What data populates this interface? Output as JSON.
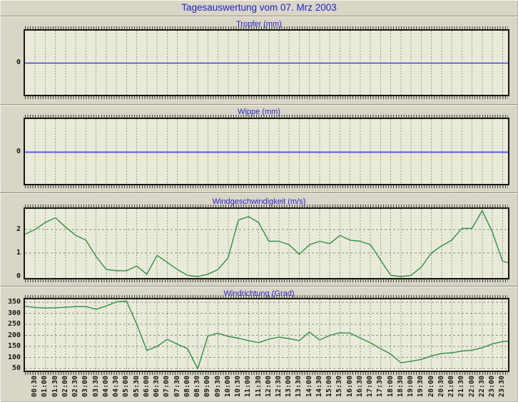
{
  "window": {
    "title": "Tagesauswertung vom 07. Mrz 2003"
  },
  "colors": {
    "page_bg": "#d9d5c7",
    "plot_bg": "#eaeada",
    "title_blue": "#2222cc",
    "grid_gray": "#9d9d8f",
    "hgrid_gray": "#8f8f7e",
    "tropfer_line": "#2929c8",
    "wippe_line": "#5b5bdf",
    "wind_green": "#2c9140"
  },
  "xaxis": {
    "start": "00:00",
    "end": "24:00",
    "step_minutes": 30,
    "tick_labels": [
      "00:30",
      "01:00",
      "01:30",
      "02:00",
      "02:30",
      "03:00",
      "03:30",
      "04:00",
      "04:30",
      "05:00",
      "05:30",
      "06:00",
      "06:30",
      "07:00",
      "07:30",
      "08:00",
      "08:30",
      "09:00",
      "09:30",
      "10:00",
      "10:30",
      "11:00",
      "11:30",
      "12:00",
      "12:30",
      "13:00",
      "13:30",
      "14:00",
      "14:30",
      "15:00",
      "15:30",
      "16:00",
      "16:30",
      "17:00",
      "17:30",
      "18:00",
      "18:30",
      "19:00",
      "19:30",
      "20:00",
      "20:30",
      "21:00",
      "21:30",
      "22:00",
      "22:30",
      "23:00",
      "23:30"
    ]
  },
  "chart_data": [
    {
      "type": "line",
      "title": "Tropfer (mm)",
      "y_ticks": [
        {
          "value": 0,
          "label": "0"
        }
      ],
      "constant_value": 0,
      "note": "flat line at 0 for entire day",
      "grid": "vertical dashed every 30 min"
    },
    {
      "type": "line",
      "title": "Wippe (mm)",
      "y_ticks": [
        {
          "value": 0,
          "label": "0"
        }
      ],
      "constant_value": 0,
      "note": "flat line at 0 for entire day",
      "grid": "vertical dashed every 30 min"
    },
    {
      "type": "line",
      "title": "Windgeschwindigkeit (m/s)",
      "ylim": [
        0,
        2.9
      ],
      "y_ticks": [
        {
          "value": 0,
          "label": "0"
        },
        {
          "value": 1,
          "label": "1"
        },
        {
          "value": 2,
          "label": "2"
        }
      ],
      "values": [
        1.8,
        2.0,
        2.3,
        2.5,
        2.1,
        1.75,
        1.55,
        0.85,
        0.3,
        0.25,
        0.25,
        0.45,
        0.1,
        0.9,
        0.6,
        0.3,
        0.05,
        0.0,
        0.1,
        0.3,
        0.8,
        2.4,
        2.55,
        2.3,
        1.5,
        1.5,
        1.35,
        0.95,
        1.35,
        1.5,
        1.4,
        1.75,
        1.55,
        1.5,
        1.35,
        0.7,
        0.05,
        0.0,
        0.05,
        0.4,
        1.0,
        1.3,
        1.55,
        2.05,
        2.05,
        2.8,
        1.9,
        0.65,
        0.55
      ]
    },
    {
      "type": "line",
      "title": "Windrichtung (Grad)",
      "ylim": [
        40,
        365
      ],
      "y_ticks": [
        {
          "value": 50,
          "label": "50"
        },
        {
          "value": 100,
          "label": "100"
        },
        {
          "value": 150,
          "label": "150"
        },
        {
          "value": 200,
          "label": "200"
        },
        {
          "value": 250,
          "label": "250"
        },
        {
          "value": 300,
          "label": "300"
        },
        {
          "value": 350,
          "label": "350"
        }
      ],
      "values": [
        332,
        326,
        324,
        325,
        327,
        330,
        330,
        318,
        333,
        352,
        355,
        250,
        132,
        150,
        182,
        160,
        140,
        48,
        197,
        210,
        195,
        187,
        176,
        167,
        183,
        192,
        185,
        176,
        215,
        179,
        200,
        212,
        210,
        188,
        166,
        140,
        115,
        76,
        83,
        91,
        107,
        118,
        121,
        129,
        133,
        144,
        161,
        172,
        175
      ]
    }
  ]
}
